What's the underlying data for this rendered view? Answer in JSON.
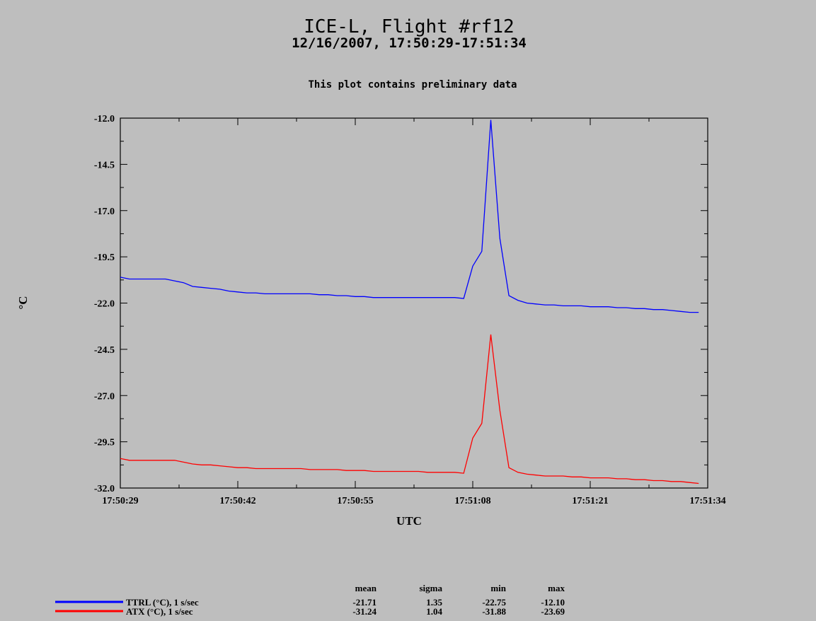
{
  "header": {
    "title": "ICE-L, Flight #rf12",
    "subtitle": "12/16/2007, 17:50:29-17:51:34",
    "note": "This plot contains preliminary data"
  },
  "chart_data": {
    "type": "line",
    "xlabel": "UTC",
    "ylabel": "°C",
    "ylim": [
      -32.0,
      -12.0
    ],
    "yticks": [
      "-12.0",
      "-14.5",
      "-17.0",
      "-19.5",
      "-22.0",
      "-24.5",
      "-27.0",
      "-29.5",
      "-32.0"
    ],
    "ytick_values": [
      -12.0,
      -14.5,
      -17.0,
      -19.5,
      -22.0,
      -24.5,
      -27.0,
      -29.5,
      -32.0
    ],
    "xticks": [
      "17:50:29",
      "17:50:42",
      "17:50:55",
      "17:51:08",
      "17:51:21",
      "17:51:34"
    ],
    "xlim_seconds": [
      0,
      65
    ],
    "grid": false,
    "series": [
      {
        "name": "TTRL (°C), 1 s/sec",
        "color": "#0000ff",
        "x": [
          0,
          1,
          2,
          3,
          4,
          5,
          6,
          7,
          8,
          9,
          10,
          11,
          12,
          13,
          14,
          15,
          16,
          17,
          18,
          19,
          20,
          21,
          22,
          23,
          24,
          25,
          26,
          27,
          28,
          29,
          30,
          31,
          32,
          33,
          34,
          35,
          36,
          37,
          38,
          39,
          40,
          41,
          42,
          43,
          44,
          45,
          46,
          47,
          48,
          49,
          50,
          51,
          52,
          53,
          54,
          55,
          56,
          57,
          58,
          59,
          60,
          61,
          62,
          63,
          64
        ],
        "values": [
          -20.6,
          -20.7,
          -20.7,
          -20.7,
          -20.7,
          -20.7,
          -20.8,
          -20.9,
          -21.1,
          -21.15,
          -21.2,
          -21.25,
          -21.35,
          -21.4,
          -21.45,
          -21.45,
          -21.5,
          -21.5,
          -21.5,
          -21.5,
          -21.5,
          -21.5,
          -21.55,
          -21.55,
          -21.6,
          -21.6,
          -21.65,
          -21.65,
          -21.7,
          -21.7,
          -21.7,
          -21.7,
          -21.7,
          -21.7,
          -21.7,
          -21.7,
          -21.7,
          -21.7,
          -21.75,
          -20.0,
          -19.2,
          -12.1,
          -18.5,
          -21.6,
          -21.85,
          -22.0,
          -22.05,
          -22.1,
          -22.1,
          -22.15,
          -22.15,
          -22.15,
          -22.2,
          -22.2,
          -22.2,
          -22.25,
          -22.25,
          -22.3,
          -22.3,
          -22.35,
          -22.35,
          -22.4,
          -22.45,
          -22.5,
          -22.5
        ]
      },
      {
        "name": "ATX (°C), 1 s/sec",
        "color": "#ff0000",
        "x": [
          0,
          1,
          2,
          3,
          4,
          5,
          6,
          7,
          8,
          9,
          10,
          11,
          12,
          13,
          14,
          15,
          16,
          17,
          18,
          19,
          20,
          21,
          22,
          23,
          24,
          25,
          26,
          27,
          28,
          29,
          30,
          31,
          32,
          33,
          34,
          35,
          36,
          37,
          38,
          39,
          40,
          41,
          42,
          43,
          44,
          45,
          46,
          47,
          48,
          49,
          50,
          51,
          52,
          53,
          54,
          55,
          56,
          57,
          58,
          59,
          60,
          61,
          62,
          63,
          64
        ],
        "values": [
          -30.4,
          -30.5,
          -30.5,
          -30.5,
          -30.5,
          -30.5,
          -30.5,
          -30.6,
          -30.7,
          -30.75,
          -30.75,
          -30.8,
          -30.85,
          -30.9,
          -30.9,
          -30.95,
          -30.95,
          -30.95,
          -30.95,
          -30.95,
          -30.95,
          -31.0,
          -31.0,
          -31.0,
          -31.0,
          -31.05,
          -31.05,
          -31.05,
          -31.1,
          -31.1,
          -31.1,
          -31.1,
          -31.1,
          -31.1,
          -31.15,
          -31.15,
          -31.15,
          -31.15,
          -31.2,
          -29.3,
          -28.5,
          -23.7,
          -27.8,
          -30.9,
          -31.15,
          -31.25,
          -31.3,
          -31.35,
          -31.35,
          -31.35,
          -31.4,
          -31.4,
          -31.45,
          -31.45,
          -31.45,
          -31.5,
          -31.5,
          -31.55,
          -31.55,
          -31.6,
          -31.6,
          -31.65,
          -31.65,
          -31.7,
          -31.75
        ]
      }
    ],
    "stats": {
      "headers": [
        "mean",
        "sigma",
        "min",
        "max"
      ],
      "rows": [
        {
          "label": "TTRL (°C), 1 s/sec",
          "color": "#0000ff",
          "values": [
            "-21.71",
            "1.35",
            "-22.75",
            "-12.10"
          ]
        },
        {
          "label": "ATX (°C), 1 s/sec",
          "color": "#ff0000",
          "values": [
            "-31.24",
            "1.04",
            "-31.88",
            "-23.69"
          ]
        }
      ]
    }
  }
}
